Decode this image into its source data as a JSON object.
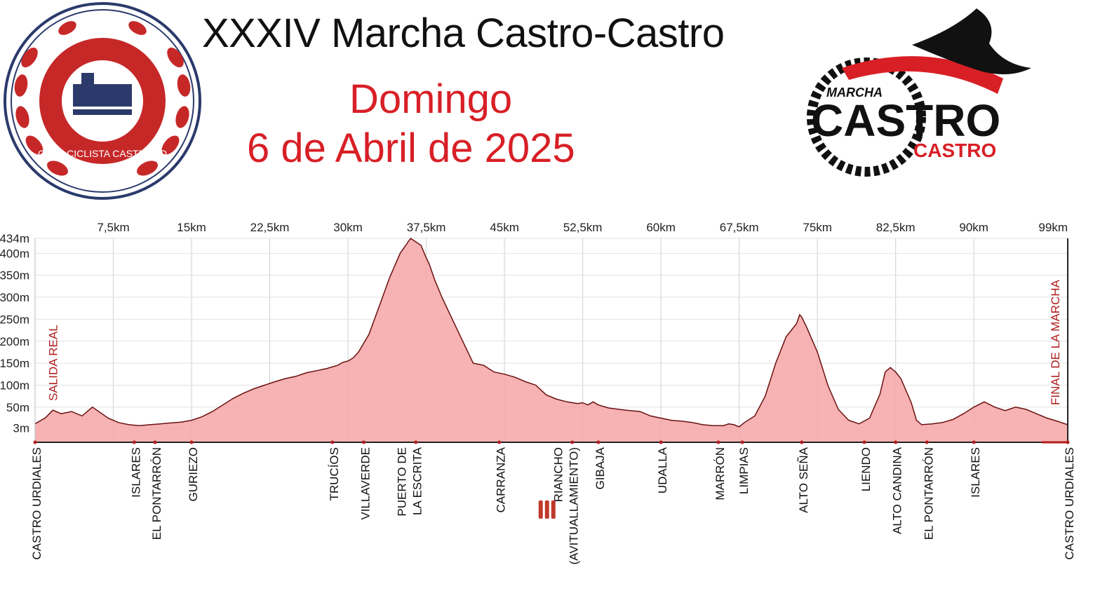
{
  "header": {
    "title": "XXXIV Marcha Castro-Castro",
    "subtitle_day": "Domingo",
    "subtitle_date": "6 de Abril de 2025"
  },
  "logos": {
    "left_text": "CLUB CICLISTA CASTREÑO",
    "right_top": "MARCHA",
    "right_main": "CASTRO",
    "right_sub": "CASTRO"
  },
  "colors": {
    "accent_red": "#d81f26",
    "profile_fill": "#f6a6a6",
    "profile_line": "#6b1010",
    "marker": "#b11e1e"
  },
  "chart_data": {
    "type": "area",
    "title": "",
    "xlabel": "",
    "ylabel": "",
    "xlim": [
      0,
      99
    ],
    "ylim": [
      -30,
      434
    ],
    "x_ticks": [
      7.5,
      15,
      22.5,
      30,
      37.5,
      45,
      52.5,
      60,
      67.5,
      75,
      82.5,
      90,
      99
    ],
    "x_tick_labels": [
      "7,5km",
      "15km",
      "22,5km",
      "30km",
      "37,5km",
      "45km",
      "52,5km",
      "60km",
      "67,5km",
      "75km",
      "82,5km",
      "90km",
      "99km"
    ],
    "y_ticks": [
      3,
      50,
      100,
      150,
      200,
      250,
      300,
      350,
      400,
      434
    ],
    "y_tick_labels": [
      "3m",
      "50m",
      "100m",
      "150m",
      "200m",
      "250m",
      "300m",
      "350m",
      "400m",
      "434m"
    ],
    "grid": true,
    "series": [
      {
        "x": [
          0,
          1,
          1.7,
          2.5,
          3.5,
          4.5,
          5.5,
          7,
          8,
          9,
          10,
          11,
          12,
          13,
          14,
          15,
          16,
          17,
          18,
          19,
          20,
          21,
          22,
          23,
          24,
          25,
          26,
          27,
          28,
          29,
          29.5,
          30,
          30.5,
          31,
          32,
          33,
          34,
          35,
          36,
          37,
          37.4,
          37.8,
          38.3,
          39,
          40,
          41,
          42,
          43,
          44,
          45,
          46,
          47,
          48,
          49,
          50,
          51,
          52,
          52.5,
          53,
          53.5,
          54,
          55,
          56,
          57,
          58,
          59,
          60,
          61,
          62,
          63,
          64,
          65,
          66,
          66.5,
          67,
          67.5,
          68,
          69,
          70,
          71,
          72,
          73,
          73.3,
          73.5,
          74,
          75,
          76,
          77,
          78,
          79,
          80,
          81,
          81.5,
          82,
          82.5,
          83,
          84,
          84.5,
          85,
          86,
          87,
          88,
          89,
          90,
          91,
          92,
          93,
          94,
          95,
          96,
          97,
          98,
          99
        ],
        "y": [
          12,
          26,
          43,
          35,
          40,
          30,
          50,
          25,
          15,
          10,
          8,
          10,
          12,
          14,
          16,
          20,
          28,
          40,
          55,
          70,
          82,
          92,
          100,
          108,
          115,
          120,
          128,
          133,
          138,
          145,
          152,
          155,
          162,
          175,
          215,
          280,
          345,
          400,
          434,
          418,
          395,
          375,
          340,
          300,
          250,
          200,
          150,
          145,
          130,
          125,
          118,
          108,
          100,
          78,
          68,
          62,
          58,
          60,
          55,
          62,
          55,
          48,
          45,
          42,
          40,
          30,
          25,
          20,
          18,
          15,
          10,
          8,
          8,
          12,
          10,
          5,
          15,
          30,
          75,
          150,
          210,
          240,
          260,
          255,
          230,
          175,
          100,
          45,
          20,
          12,
          25,
          80,
          130,
          140,
          130,
          115,
          60,
          20,
          10,
          12,
          15,
          22,
          35,
          50,
          62,
          50,
          42,
          50,
          45,
          35,
          25,
          18,
          10
        ],
        "fill": "#f6a6a6"
      }
    ],
    "annotations": [
      {
        "text": "SALIDA REAL",
        "x": 1.7
      },
      {
        "text": "FINAL DE LA MARCHA",
        "x": 97.8
      }
    ],
    "locations": [
      {
        "x": 0,
        "lines": [
          "CASTRO URDIALES"
        ]
      },
      {
        "x": 9.5,
        "lines": [
          "ISLARES"
        ]
      },
      {
        "x": 11.5,
        "lines": [
          "EL PONTARRÓN"
        ]
      },
      {
        "x": 15,
        "lines": [
          "GURIEZO"
        ]
      },
      {
        "x": 28.5,
        "lines": [
          "TRUCÍOS"
        ]
      },
      {
        "x": 31.5,
        "lines": [
          "VILLAVERDE"
        ]
      },
      {
        "x": 36.5,
        "lines": [
          "PUERTO DE",
          "LA ESCRITA"
        ]
      },
      {
        "x": 44.5,
        "lines": [
          "CARRANZA"
        ]
      },
      {
        "x": 51.5,
        "lines": [
          "RIANCHO",
          "(AVITUALLAMIENTO)"
        ],
        "icon": "food-icon"
      },
      {
        "x": 54,
        "lines": [
          "GIBAJA"
        ]
      },
      {
        "x": 60,
        "lines": [
          "UDALLA"
        ]
      },
      {
        "x": 65.5,
        "lines": [
          "MARRÓN"
        ]
      },
      {
        "x": 67.8,
        "lines": [
          "LIMPIAS"
        ]
      },
      {
        "x": 73.5,
        "lines": [
          "ALTO SEÑA"
        ]
      },
      {
        "x": 79.5,
        "lines": [
          "LIENDO"
        ]
      },
      {
        "x": 82.5,
        "lines": [
          "ALTO CANDINA"
        ]
      },
      {
        "x": 85.5,
        "lines": [
          "EL PONTARRÓN"
        ]
      },
      {
        "x": 90,
        "lines": [
          "ISLARES"
        ]
      },
      {
        "x": 99,
        "lines": [
          "CASTRO URDIALES"
        ]
      }
    ]
  }
}
